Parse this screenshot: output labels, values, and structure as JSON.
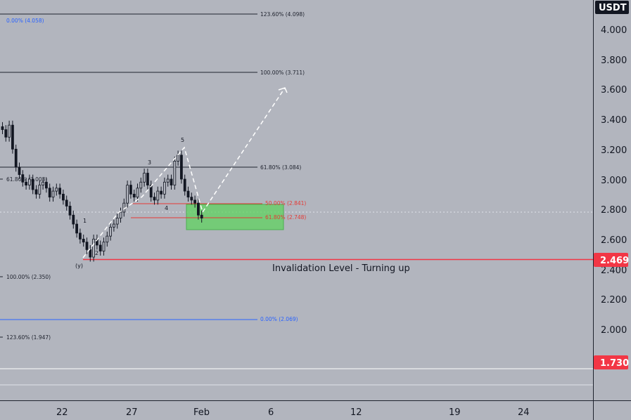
{
  "currency": "USDT",
  "colors": {
    "background": "#b2b5be",
    "grid_line": "#1e222d",
    "candle": "#131722",
    "fib_black": "#1e222d",
    "fib_red": "#e53935",
    "fib_blue": "#2962ff",
    "zone_fill": "#5fd35f",
    "invalidation": "#f23645",
    "white_dash": "#ffffff",
    "badge_dark": "#131722"
  },
  "price_axis": {
    "ticks": [
      "4.000",
      "3.800",
      "3.600",
      "3.400",
      "3.200",
      "3.000",
      "2.800",
      "2.600",
      "2.400",
      "2.200",
      "2.000"
    ],
    "badge_current": "2.469",
    "badge_low": "1.730"
  },
  "time_axis": {
    "labels": [
      "22",
      "27",
      "Feb",
      "6",
      "12",
      "19",
      "24"
    ]
  },
  "fib_levels": {
    "upper": [
      {
        "label": "123.60% (4.098)",
        "price": 4.098
      },
      {
        "label": "100.00% (3.711)",
        "price": 3.711
      },
      {
        "label": "61.80% (3.084)",
        "price": 3.084
      },
      {
        "label": "0.00% (2.069)",
        "price": 2.069
      }
    ],
    "retracement": [
      {
        "label": "50.00% (2.841)",
        "price": 2.841
      },
      {
        "label": "61.80% (2.748)",
        "price": 2.748
      }
    ],
    "left": [
      {
        "label": "0.00% (4.058)",
        "price": 4.058
      },
      {
        "label": "61.80% (3.003)",
        "price": 3.003
      },
      {
        "label": "100.00% (2.350)",
        "price": 2.35
      },
      {
        "label": "123.60% (1.947)",
        "price": 1.947
      }
    ]
  },
  "wave_labels": [
    "1",
    "2",
    "3",
    "4",
    "5",
    "(y)"
  ],
  "annotation": "Invalidation Level - Turning up",
  "invalidation_price": 2.469,
  "chart_data": {
    "type": "candlestick",
    "y_range": [
      1.5,
      4.2
    ],
    "levels": [
      4.098,
      3.711,
      3.084,
      2.841,
      2.748,
      2.469,
      2.069
    ],
    "closes": [
      3.35,
      3.3,
      3.38,
      3.22,
      3.1,
      3.05,
      3.0,
      2.98,
      3.02,
      2.95,
      2.92,
      2.98,
      3.0,
      2.96,
      2.9,
      2.94,
      2.96,
      2.92,
      2.88,
      2.84,
      2.78,
      2.72,
      2.66,
      2.62,
      2.6,
      2.55,
      2.5,
      2.62,
      2.58,
      2.54,
      2.6,
      2.64,
      2.7,
      2.72,
      2.76,
      2.8,
      2.86,
      2.98,
      2.92,
      2.9,
      2.96,
      3.0,
      3.06,
      2.98,
      2.9,
      2.88,
      2.94,
      2.92,
      3.0,
      3.02,
      2.98,
      3.14,
      3.18,
      3.02,
      2.94,
      2.9,
      2.88,
      2.86,
      2.78,
      2.76
    ]
  }
}
